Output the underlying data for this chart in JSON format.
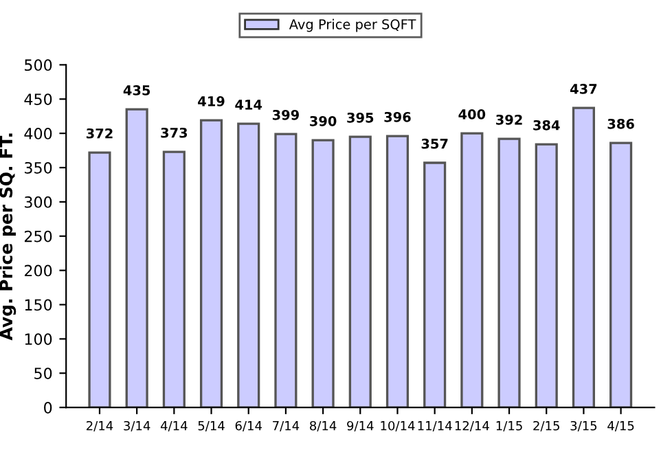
{
  "chart_data": {
    "type": "bar",
    "ylabel": "Avg. Price per SQ. FT.",
    "categories": [
      "2/14",
      "3/14",
      "4/14",
      "5/14",
      "6/14",
      "7/14",
      "8/14",
      "9/14",
      "10/14",
      "11/14",
      "12/14",
      "1/15",
      "2/15",
      "3/15",
      "4/15"
    ],
    "series": [
      {
        "name": "Avg Price per SQFT",
        "color": "#ccccff",
        "values": [
          372,
          435,
          373,
          419,
          414,
          399,
          390,
          395,
          396,
          357,
          400,
          392,
          384,
          437,
          386
        ]
      }
    ],
    "ylim": [
      0,
      500
    ],
    "yticks": [
      0,
      50,
      100,
      150,
      200,
      250,
      300,
      350,
      400,
      450,
      500
    ],
    "data_labels": true,
    "legend": "top",
    "grid": false
  }
}
